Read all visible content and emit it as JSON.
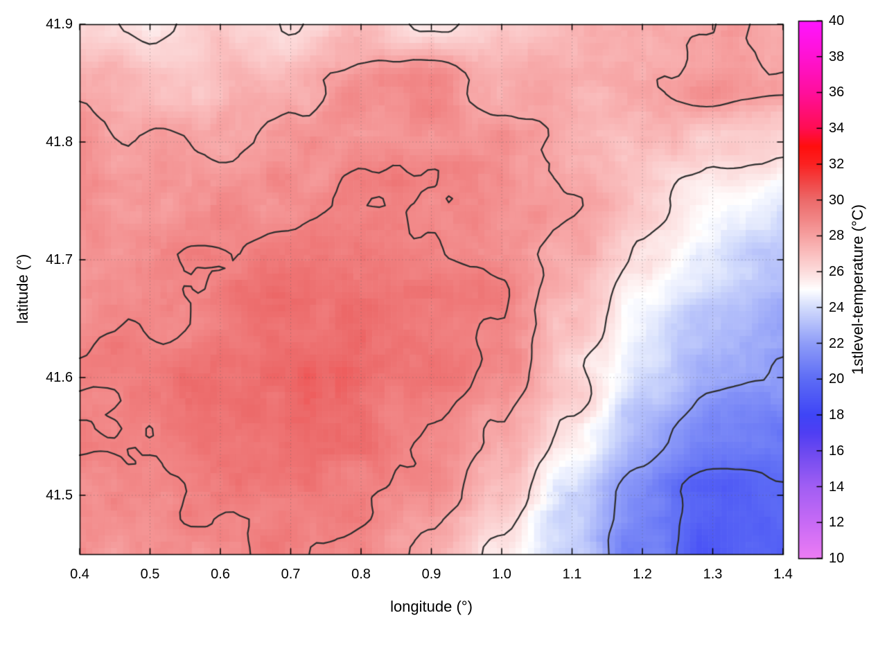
{
  "chart_data": {
    "type": "heatmap",
    "title": "",
    "xlabel": "longitude (°)",
    "ylabel": "latitude (°)",
    "x_range": [
      0.4,
      1.4
    ],
    "y_range": [
      41.45,
      41.9
    ],
    "x_ticks": [
      "0.4",
      "0.5",
      "0.6",
      "0.7",
      "0.8",
      "0.9",
      "1.0",
      "1.1",
      "1.2",
      "1.3",
      "1.4"
    ],
    "y_ticks": [
      "41.5",
      "41.6",
      "41.7",
      "41.8",
      "41.9"
    ],
    "grid": "dotted",
    "contour_levels": [
      20,
      22,
      26,
      28,
      29
    ],
    "contour_color": "#2d2d2d",
    "colorbar": {
      "label": "1stlevel-temperature (°C)",
      "position": "right",
      "range": [
        10,
        40
      ],
      "ticks": [
        10,
        12,
        14,
        16,
        18,
        20,
        22,
        24,
        26,
        28,
        30,
        32,
        34,
        36,
        38,
        40
      ],
      "palette": [
        [
          10,
          "#ec7cf4"
        ],
        [
          12,
          "#c76af5"
        ],
        [
          14,
          "#a15ef3"
        ],
        [
          16,
          "#6b49f0"
        ],
        [
          17,
          "#4f3ef3"
        ],
        [
          18,
          "#3f45f6"
        ],
        [
          20,
          "#5d6cf5"
        ],
        [
          22,
          "#8f9df8"
        ],
        [
          24,
          "#d3dcfc"
        ],
        [
          25,
          "#ffffff"
        ],
        [
          26,
          "#fcdcdc"
        ],
        [
          27,
          "#fabfbf"
        ],
        [
          28,
          "#f6a1a1"
        ],
        [
          29,
          "#f18484"
        ],
        [
          30,
          "#ec6a6a"
        ],
        [
          31,
          "#f14646"
        ],
        [
          32,
          "#fb2222"
        ],
        [
          33,
          "#ff0e0e"
        ],
        [
          34,
          "#ff0d52"
        ],
        [
          36,
          "#ff0f9c"
        ],
        [
          38,
          "#ff12d2"
        ],
        [
          40,
          "#ff15ff"
        ]
      ]
    },
    "x": [
      0.4,
      0.5,
      0.6,
      0.7,
      0.8,
      0.9,
      1.0,
      1.1,
      1.2,
      1.3,
      1.4
    ],
    "y": [
      41.9,
      41.85,
      41.8,
      41.75,
      41.7,
      41.65,
      41.6,
      41.55,
      41.5,
      41.45
    ],
    "values": [
      [
        26.4,
        25.6,
        26.8,
        25.8,
        27.0,
        26.0,
        26.4,
        27.0,
        27.8,
        28.2,
        27.8
      ],
      [
        27.8,
        27.2,
        27.0,
        27.6,
        28.6,
        28.8,
        27.6,
        27.4,
        28.0,
        28.4,
        28.2
      ],
      [
        28.4,
        28.0,
        27.8,
        28.4,
        28.6,
        28.8,
        28.4,
        27.8,
        27.2,
        26.6,
        26.2
      ],
      [
        28.6,
        28.4,
        28.4,
        28.8,
        29.0,
        29.0,
        28.6,
        28.0,
        26.6,
        25.2,
        24.4
      ],
      [
        28.6,
        28.8,
        29.0,
        29.4,
        29.4,
        29.2,
        28.8,
        27.6,
        25.6,
        24.2,
        23.4
      ],
      [
        28.8,
        29.0,
        29.4,
        29.8,
        29.6,
        29.4,
        29.0,
        27.0,
        24.8,
        23.2,
        22.6
      ],
      [
        29.0,
        29.4,
        29.9,
        30.1,
        29.9,
        29.5,
        28.6,
        26.4,
        23.8,
        22.2,
        21.8
      ],
      [
        28.9,
        29.1,
        29.6,
        30.0,
        29.6,
        29.1,
        27.9,
        25.6,
        22.8,
        20.9,
        20.9
      ],
      [
        28.7,
        28.9,
        29.1,
        29.5,
        29.1,
        28.6,
        27.0,
        23.8,
        21.0,
        19.4,
        19.9
      ],
      [
        28.5,
        28.6,
        28.9,
        29.1,
        28.6,
        27.6,
        25.8,
        23.6,
        20.8,
        19.0,
        19.4
      ]
    ]
  }
}
